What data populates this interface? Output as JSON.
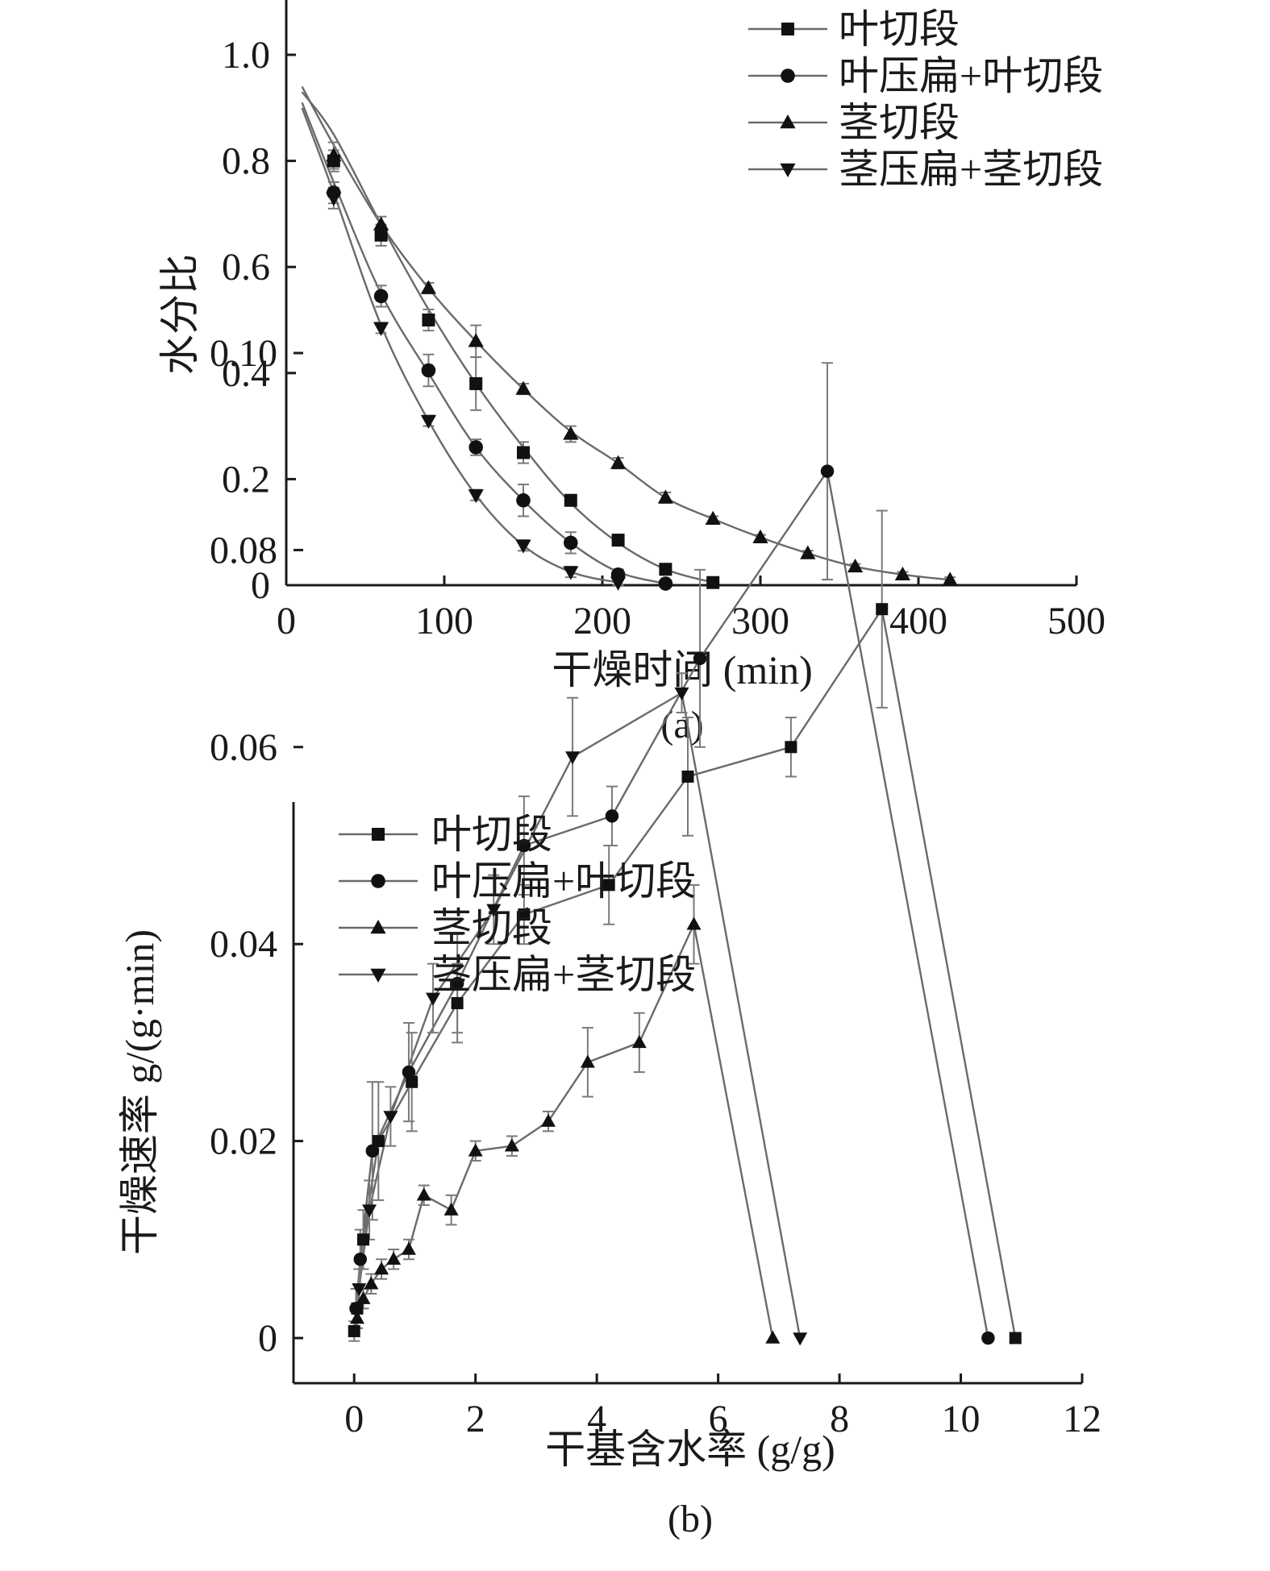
{
  "chart_data": [
    {
      "type": "line",
      "caption": "(a)",
      "xlabel": "干燥时间 (min)",
      "ylabel": "水分比",
      "xlim": [
        0,
        500
      ],
      "ylim": [
        0,
        1.1
      ],
      "xticks": [
        0,
        100,
        200,
        300,
        400,
        500
      ],
      "yticks": [
        0,
        0.2,
        0.4,
        0.6,
        0.8,
        1.0
      ],
      "xtick_labels": [
        "0",
        "100",
        "200",
        "300",
        "400",
        "500"
      ],
      "ytick_labels": [
        "0",
        "0.2",
        "0.4",
        "0.6",
        "0.8",
        "1.0"
      ],
      "grid": false,
      "legend_position": "top-right",
      "series": [
        {
          "name": "叶切段",
          "marker": "square",
          "curve": [
            [
              10,
              0.93
            ],
            [
              30,
              0.85
            ],
            [
              60,
              0.68
            ],
            [
              90,
              0.52
            ],
            [
              120,
              0.38
            ],
            [
              150,
              0.26
            ],
            [
              180,
              0.155
            ],
            [
              210,
              0.08
            ],
            [
              240,
              0.03
            ],
            [
              270,
              0.005
            ]
          ],
          "points": [
            [
              30,
              0.8
            ],
            [
              60,
              0.66
            ],
            [
              90,
              0.5
            ],
            [
              120,
              0.38
            ],
            [
              150,
              0.25
            ],
            [
              180,
              0.16
            ],
            [
              210,
              0.085
            ],
            [
              240,
              0.03
            ],
            [
              270,
              0.005
            ]
          ],
          "errors": [
            0.02,
            0.02,
            0.02,
            0.05,
            0.02,
            0.01,
            0.01,
            0.005,
            0.003
          ]
        },
        {
          "name": "叶压扁+叶切段",
          "marker": "circle",
          "curve": [
            [
              10,
              0.91
            ],
            [
              30,
              0.76
            ],
            [
              60,
              0.55
            ],
            [
              90,
              0.4
            ],
            [
              120,
              0.26
            ],
            [
              150,
              0.16
            ],
            [
              180,
              0.08
            ],
            [
              210,
              0.025
            ],
            [
              240,
              0.003
            ]
          ],
          "points": [
            [
              30,
              0.74
            ],
            [
              60,
              0.545
            ],
            [
              90,
              0.405
            ],
            [
              120,
              0.26
            ],
            [
              150,
              0.16
            ],
            [
              180,
              0.08
            ],
            [
              210,
              0.02
            ],
            [
              240,
              0.003
            ]
          ],
          "errors": [
            0.02,
            0.02,
            0.03,
            0.015,
            0.03,
            0.02,
            0.01,
            0.003
          ]
        },
        {
          "name": "茎切段",
          "marker": "triangle-up",
          "curve": [
            [
              10,
              0.94
            ],
            [
              30,
              0.83
            ],
            [
              60,
              0.68
            ],
            [
              90,
              0.56
            ],
            [
              120,
              0.46
            ],
            [
              150,
              0.37
            ],
            [
              180,
              0.29
            ],
            [
              210,
              0.23
            ],
            [
              240,
              0.165
            ],
            [
              270,
              0.125
            ],
            [
              300,
              0.09
            ],
            [
              330,
              0.06
            ],
            [
              360,
              0.035
            ],
            [
              390,
              0.02
            ],
            [
              420,
              0.01
            ]
          ],
          "points": [
            [
              30,
              0.81
            ],
            [
              60,
              0.68
            ],
            [
              90,
              0.56
            ],
            [
              120,
              0.46
            ],
            [
              150,
              0.37
            ],
            [
              180,
              0.285
            ],
            [
              210,
              0.23
            ],
            [
              240,
              0.165
            ],
            [
              270,
              0.125
            ],
            [
              300,
              0.09
            ],
            [
              330,
              0.06
            ],
            [
              360,
              0.035
            ],
            [
              390,
              0.02
            ],
            [
              420,
              0.01
            ]
          ],
          "errors": [
            0.025,
            0.015,
            0.01,
            0.03,
            0.01,
            0.015,
            0.01,
            0.01,
            0.005,
            0.005,
            0.005,
            0.005,
            0.005,
            0.005
          ]
        },
        {
          "name": "茎压扁+茎切段",
          "marker": "triangle-down",
          "curve": [
            [
              10,
              0.9
            ],
            [
              30,
              0.74
            ],
            [
              60,
              0.49
            ],
            [
              90,
              0.31
            ],
            [
              120,
              0.17
            ],
            [
              150,
              0.075
            ],
            [
              180,
              0.025
            ],
            [
              210,
              0.005
            ]
          ],
          "points": [
            [
              30,
              0.73
            ],
            [
              60,
              0.485
            ],
            [
              90,
              0.31
            ],
            [
              120,
              0.17
            ],
            [
              150,
              0.075
            ],
            [
              180,
              0.025
            ],
            [
              210,
              0.005
            ]
          ],
          "errors": [
            0.02,
            0.01,
            0.01,
            0.01,
            0.01,
            0.01,
            0.005
          ]
        }
      ]
    },
    {
      "type": "line",
      "caption": "(b)",
      "xlabel": "干基含水率 (g/g)",
      "ylabel": "干燥速率 g/(g·min)",
      "xlim": [
        -1,
        12
      ],
      "ylim": [
        -0.005,
        0.11
      ],
      "xticks": [
        0,
        2,
        4,
        6,
        8,
        10,
        12
      ],
      "yticks": [
        0,
        0.02,
        0.04,
        0.06,
        0.08,
        0.1
      ],
      "xtick_labels": [
        "0",
        "2",
        "4",
        "6",
        "8",
        "10",
        "12"
      ],
      "ytick_labels": [
        "0",
        "0.02",
        "0.04",
        "0.06",
        "0.08",
        "0.10"
      ],
      "grid": false,
      "legend_position": "top-left",
      "series": [
        {
          "name": "叶切段",
          "marker": "square",
          "points": [
            [
              10.9,
              0.0
            ],
            [
              8.7,
              0.074
            ],
            [
              7.2,
              0.06
            ],
            [
              5.5,
              0.057
            ],
            [
              4.2,
              0.046
            ],
            [
              2.8,
              0.043
            ],
            [
              1.7,
              0.034
            ],
            [
              0.95,
              0.026
            ],
            [
              0.4,
              0.02
            ],
            [
              0.15,
              0.01
            ],
            [
              0.05,
              0.003
            ],
            [
              0.0,
              0.0007
            ]
          ],
          "errors": [
            0,
            0.01,
            0.003,
            0.006,
            0.004,
            0.003,
            0.004,
            0.005,
            0.006,
            0.003,
            0.002,
            0.001
          ]
        },
        {
          "name": "叶压扁+叶切段",
          "marker": "circle",
          "points": [
            [
              10.45,
              0.0
            ],
            [
              7.8,
              0.088
            ],
            [
              5.7,
              0.069
            ],
            [
              4.25,
              0.053
            ],
            [
              2.8,
              0.05
            ],
            [
              1.7,
              0.036
            ],
            [
              0.9,
              0.027
            ],
            [
              0.3,
              0.019
            ],
            [
              0.1,
              0.008
            ],
            [
              0.03,
              0.003
            ]
          ],
          "errors": [
            0,
            0.011,
            0.009,
            0.003,
            0.005,
            0.005,
            0.005,
            0.007,
            0.003,
            0.002
          ]
        },
        {
          "name": "茎切段",
          "marker": "triangle-up",
          "points": [
            [
              6.9,
              0.0
            ],
            [
              5.6,
              0.042
            ],
            [
              4.7,
              0.03
            ],
            [
              3.85,
              0.028
            ],
            [
              3.2,
              0.022
            ],
            [
              2.6,
              0.0195
            ],
            [
              2.0,
              0.019
            ],
            [
              1.6,
              0.013
            ],
            [
              1.15,
              0.0145
            ],
            [
              0.9,
              0.009
            ],
            [
              0.65,
              0.008
            ],
            [
              0.45,
              0.007
            ],
            [
              0.28,
              0.0055
            ],
            [
              0.15,
              0.004
            ],
            [
              0.05,
              0.002
            ]
          ],
          "errors": [
            0,
            0.004,
            0.003,
            0.0035,
            0.001,
            0.001,
            0.001,
            0.0015,
            0.001,
            0.001,
            0.001,
            0.001,
            0.001,
            0.001,
            0.001
          ]
        },
        {
          "name": "茎压扁+茎切段",
          "marker": "triangle-down",
          "points": [
            [
              7.35,
              0.0
            ],
            [
              5.4,
              0.0655
            ],
            [
              3.6,
              0.059
            ],
            [
              2.3,
              0.0435
            ],
            [
              1.3,
              0.0345
            ],
            [
              0.6,
              0.0225
            ],
            [
              0.25,
              0.013
            ],
            [
              0.08,
              0.005
            ]
          ],
          "errors": [
            0,
            0.002,
            0.006,
            0.0035,
            0.0035,
            0.003,
            0.003,
            0.002
          ]
        }
      ]
    }
  ]
}
